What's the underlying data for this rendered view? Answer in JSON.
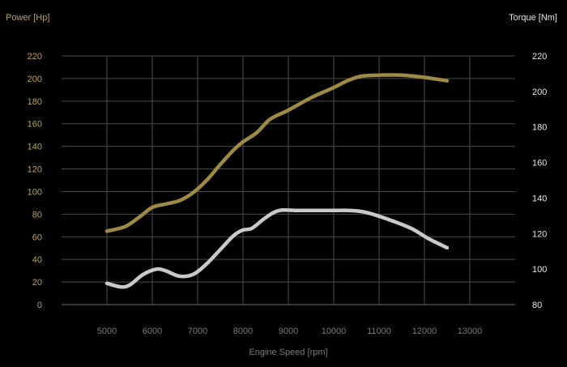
{
  "chart_data": {
    "type": "line",
    "xlabel": "Engine Speed [rpm]",
    "ylabel_left": "Power [Hp]",
    "ylabel_right": "Torque [Nm]",
    "xlim": [
      4000,
      14000
    ],
    "x_ticks": [
      5000,
      6000,
      7000,
      8000,
      9000,
      10000,
      11000,
      12000,
      13000
    ],
    "y_left_lim": [
      0,
      220
    ],
    "y_left_ticks": [
      0,
      20,
      40,
      60,
      80,
      100,
      120,
      140,
      160,
      180,
      200,
      220
    ],
    "y_right_lim": [
      80,
      220
    ],
    "y_right_ticks": [
      80,
      100,
      120,
      140,
      160,
      180,
      200,
      220
    ],
    "grid": true,
    "colors": {
      "power": "#9f8a45",
      "torque": "#c9c9c9",
      "left_axis": "#bba35b",
      "right_axis": "#e6e6e6",
      "x_axis": "#7a7a7a",
      "grid": "#4a4a4a"
    },
    "series": [
      {
        "axis": "left",
        "color": "#9f8a45",
        "points": [
          [
            5000,
            65
          ],
          [
            5400,
            69
          ],
          [
            5700,
            77
          ],
          [
            6000,
            86
          ],
          [
            6300,
            89
          ],
          [
            6600,
            92
          ],
          [
            6900,
            99
          ],
          [
            7200,
            110
          ],
          [
            7500,
            124
          ],
          [
            7800,
            137
          ],
          [
            8000,
            144
          ],
          [
            8300,
            152
          ],
          [
            8600,
            164
          ],
          [
            9000,
            172
          ],
          [
            9500,
            183
          ],
          [
            10000,
            192
          ],
          [
            10300,
            198
          ],
          [
            10600,
            202
          ],
          [
            11000,
            203
          ],
          [
            11500,
            203
          ],
          [
            12000,
            201
          ],
          [
            12500,
            198
          ]
        ]
      },
      {
        "axis": "right",
        "color": "#c9c9c9",
        "points": [
          [
            5000,
            92
          ],
          [
            5300,
            90
          ],
          [
            5500,
            91
          ],
          [
            5800,
            97
          ],
          [
            6100,
            100
          ],
          [
            6300,
            99
          ],
          [
            6600,
            96
          ],
          [
            6900,
            97
          ],
          [
            7200,
            103
          ],
          [
            7500,
            111
          ],
          [
            7800,
            119
          ],
          [
            8000,
            122
          ],
          [
            8200,
            123
          ],
          [
            8500,
            129
          ],
          [
            8800,
            133
          ],
          [
            9200,
            133
          ],
          [
            9600,
            133
          ],
          [
            10000,
            133
          ],
          [
            10300,
            133
          ],
          [
            10700,
            132
          ],
          [
            11200,
            128
          ],
          [
            11700,
            123
          ],
          [
            12100,
            117
          ],
          [
            12500,
            112
          ]
        ]
      }
    ]
  }
}
